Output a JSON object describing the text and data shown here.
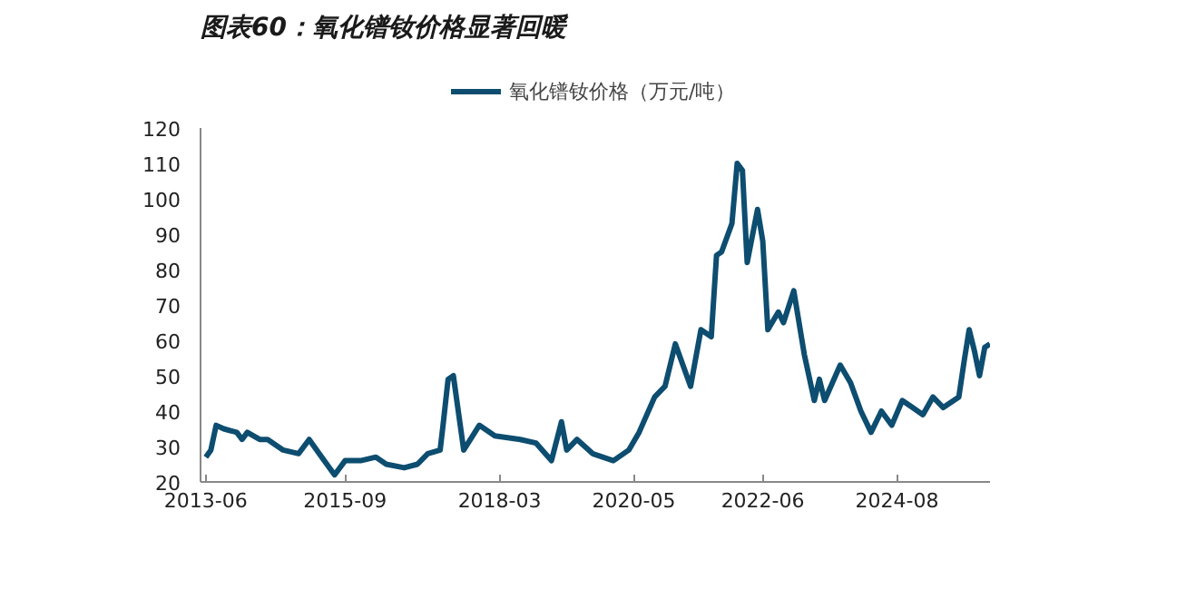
{
  "chart_data": {
    "type": "line",
    "title": "图表60：氧化镨钕价格显著回暖",
    "x": [
      "2013-06",
      "2013-07",
      "2013-08",
      "2013-09-15",
      "2013-12",
      "2014-01",
      "2014-02",
      "2014-04-15",
      "2014-06",
      "2014-09",
      "2014-12",
      "2015-02",
      "2015-04",
      "2015-07",
      "2015-09",
      "2015-12",
      "2016-03",
      "2016-05",
      "2016-08-15",
      "2016-11",
      "2017-01",
      "2017-03-15",
      "2017-04",
      "2017-05",
      "2017-06",
      "2017-08",
      "2017-11",
      "2018-02",
      "2018-07",
      "2018-10",
      "2019-01",
      "2019-03",
      "2019-04",
      "2019-06",
      "2019-09",
      "2020-01",
      "2020-04",
      "2020-06",
      "2020-09",
      "2020-11",
      "2021-01",
      "2021-04",
      "2021-06",
      "2021-08",
      "2021-09",
      "2021-10",
      "2021-12",
      "2022-01",
      "2022-02",
      "2022-03",
      "2022-05",
      "2022-06",
      "2022-07",
      "2022-09",
      "2022-10",
      "2022-12",
      "2023-02",
      "2023-04",
      "2023-05",
      "2023-06",
      "2023-09",
      "2023-11",
      "2024-01",
      "2024-03",
      "2024-05",
      "2024-07",
      "2024-09",
      "2024-11",
      "2025-01",
      "2025-03",
      "2025-05",
      "2025-08",
      "2025-09",
      "2025-10",
      "2025-11",
      "2025-12",
      "2026-01",
      "2026-02"
    ],
    "series": [
      {
        "name": "氧化镨钕价格（万元/吨）",
        "color": "#0d4d70",
        "values": [
          27,
          29,
          36,
          35,
          34,
          32,
          34,
          32,
          32,
          29,
          28,
          32,
          28,
          22,
          26,
          26,
          27,
          25,
          24,
          25,
          28,
          29,
          36,
          49,
          50,
          29,
          36,
          33,
          32,
          31,
          26,
          37,
          29,
          32,
          28,
          26,
          29,
          34,
          44,
          47,
          59,
          47,
          63,
          61,
          84,
          85,
          93,
          110,
          108,
          82,
          97,
          88,
          63,
          68,
          65,
          74,
          56,
          43,
          49,
          43,
          53,
          48,
          40,
          34,
          40,
          36,
          43,
          41,
          39,
          44,
          41,
          44,
          54,
          63,
          57,
          50,
          58,
          59
        ]
      }
    ],
    "xlim": [
      "2013-05",
      "2026-02"
    ],
    "xticks": [
      "2013-06",
      "2015-09",
      "2018-03",
      "2020-05",
      "2022-06",
      "2024-08"
    ],
    "ylim": [
      20,
      120
    ],
    "yticks": [
      20,
      30,
      40,
      50,
      60,
      70,
      80,
      90,
      100,
      110,
      120
    ],
    "legend": "top",
    "grid": false
  }
}
